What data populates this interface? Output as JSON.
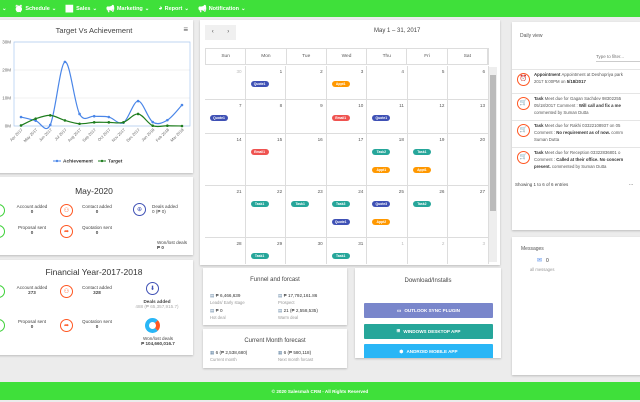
{
  "nav": {
    "items": [
      {
        "label": "Schedule",
        "icon": "clock-icon"
      },
      {
        "label": "Sales",
        "icon": "chart-line-icon"
      },
      {
        "label": "Marketing",
        "icon": "megaphone-icon"
      },
      {
        "label": "Report",
        "icon": "pie-icon"
      },
      {
        "label": "Notification",
        "icon": "megaphone-icon"
      }
    ]
  },
  "chart_data": {
    "type": "line",
    "title": "Target Vs Achievement",
    "categories": [
      "Apr 2017",
      "May 2017",
      "Jun 2017",
      "Jul 2017",
      "Aug 2017",
      "Sep 2017",
      "Oct 2017",
      "Nov 2017",
      "Dec 2017",
      "Jan 2018",
      "Feb 2018",
      "Mar 2018"
    ],
    "yticks": [
      "0M",
      "10M",
      "20M",
      "30M"
    ],
    "ylim": [
      0,
      30
    ],
    "grid": true,
    "legend": "bottom",
    "series": [
      {
        "name": "Achievement",
        "color": "#4a86e8",
        "values": [
          3.2,
          1.9,
          0.4,
          22.9,
          4.3,
          3.5,
          3.2,
          1.2,
          8.9,
          1.4,
          2.1,
          7.5
        ]
      },
      {
        "name": "Target",
        "color": "#1e7d1e",
        "values": [
          0.2,
          2.6,
          3.8,
          2.0,
          0.8,
          1.3,
          1.3,
          1.3,
          4.3,
          0.1,
          0.1,
          0
        ]
      }
    ]
  },
  "month": {
    "title": "May-2020",
    "account_label": "Account added",
    "account_value": "0",
    "contact_label": "Contact added",
    "contact_value": "0",
    "deals_label": "Deals added",
    "deals_value": "0 (₱ 0)",
    "proposal_label": "Proposal sent",
    "proposal_value": "0",
    "quotation_label": "Quotation sent",
    "quotation_value": "0",
    "wonlost_label": "Won/lost deals",
    "wonlost_value": "₱ 0"
  },
  "fy": {
    "title": "Financial Year-2017-2018",
    "account_label": "Account added",
    "account_value": "273",
    "contact_label": "Contact added",
    "contact_value": "328",
    "deals_label": "Deals added",
    "deals_value": "488 (₱ 65,357,915.7)",
    "proposal_label": "Proposal sent",
    "proposal_value": "0",
    "quotation_label": "Quotation sent",
    "quotation_value": "0",
    "wonlost_label": "Won/lost deals",
    "wonlost_value": "₱ 104,660,016.7"
  },
  "calendar": {
    "title": "May 1 – 31, 2017",
    "prev": "‹",
    "next": "›",
    "days": [
      "Sun",
      "Mon",
      "Tue",
      "Wed",
      "Thu",
      "Fri",
      "Sat"
    ],
    "weeks": [
      [
        {
          "n": "30",
          "o": true
        },
        {
          "n": "1",
          "ev": [
            [
              "Quote1",
              "#3f51b5"
            ]
          ]
        },
        {
          "n": "2"
        },
        {
          "n": "3",
          "ev": [
            [
              "Appt1",
              "#ff9800"
            ]
          ]
        },
        {
          "n": "4"
        },
        {
          "n": "5"
        },
        {
          "n": "6"
        }
      ],
      [
        {
          "n": "7",
          "ev": [
            [
              "Quote1",
              "#3f51b5"
            ]
          ]
        },
        {
          "n": "8"
        },
        {
          "n": "9"
        },
        {
          "n": "10",
          "ev": [
            [
              "Email1",
              "#ef5350"
            ]
          ]
        },
        {
          "n": "11",
          "ev": [
            [
              "Quote1",
              "#3f51b5"
            ]
          ]
        },
        {
          "n": "12"
        },
        {
          "n": "13"
        }
      ],
      [
        {
          "n": "14"
        },
        {
          "n": "15",
          "ev": [
            [
              "Email1",
              "#ef5350"
            ]
          ]
        },
        {
          "n": "16"
        },
        {
          "n": "17"
        },
        {
          "n": "18",
          "ev": [
            [
              "Task2",
              "#26a69a"
            ],
            [
              "Appt1",
              "#ff9800"
            ]
          ]
        },
        {
          "n": "19",
          "ev": [
            [
              "Task1",
              "#26a69a"
            ],
            [
              "Appt1",
              "#ff9800"
            ]
          ]
        },
        {
          "n": "20"
        }
      ],
      [
        {
          "n": "21"
        },
        {
          "n": "22",
          "ev": [
            [
              "Task1",
              "#26a69a"
            ]
          ]
        },
        {
          "n": "23",
          "ev": [
            [
              "Task1",
              "#26a69a"
            ]
          ]
        },
        {
          "n": "24",
          "ev": [
            [
              "Task3",
              "#26a69a"
            ],
            [
              "Quote1",
              "#3f51b5"
            ]
          ]
        },
        {
          "n": "25",
          "ev": [
            [
              "Quote3",
              "#3f51b5"
            ],
            [
              "Appt2",
              "#ff9800"
            ]
          ]
        },
        {
          "n": "26",
          "ev": [
            [
              "Task2",
              "#26a69a"
            ]
          ]
        },
        {
          "n": "27"
        }
      ],
      [
        {
          "n": "28"
        },
        {
          "n": "29",
          "ev": [
            [
              "Task1",
              "#26a69a"
            ]
          ]
        },
        {
          "n": "30"
        },
        {
          "n": "31",
          "ev": [
            [
              "Task1",
              "#26a69a"
            ]
          ]
        },
        {
          "n": "1",
          "o": true
        },
        {
          "n": "2",
          "o": true
        },
        {
          "n": "3",
          "o": true
        }
      ]
    ]
  },
  "funnel": {
    "title": "Funnel and forcast",
    "items": [
      {
        "value": "₱ 6,466,639",
        "label": "Leads/ Early stage"
      },
      {
        "value": "₱ 17,792,161.86",
        "label": "Prospect"
      },
      {
        "value": "₱ 0",
        "label": "Hot deal"
      },
      {
        "value": "21 (₱ 2,558,535)",
        "label": "Warm deal"
      }
    ]
  },
  "forecast": {
    "title": "Current Month forecast",
    "items": [
      {
        "value": "6 (₱ 2,538,680)",
        "label": "Current month"
      },
      {
        "value": "6 (₱ 580,118)",
        "label": "Next month forcast"
      }
    ]
  },
  "downloads": {
    "title": "Download/Installs",
    "buttons": [
      {
        "label": "OUTLOOK SYNC PLUGIN",
        "color": "#7986cb"
      },
      {
        "label": "WINDOWS DESKTOP APP",
        "color": "#26a69a"
      },
      {
        "label": "ANDROID MOBILE APP",
        "color": "#29b6f6"
      }
    ]
  },
  "daily": {
    "title": "Daily view",
    "filter_placeholder": "Type to filter...",
    "entries": [
      {
        "icon": "alarm-clock-icon",
        "lines": [
          [
            [
              "Appointment",
              true
            ],
            [
              " Appointment at Deshopriya park",
              false
            ]
          ],
          [
            [
              "2017 5:00PM on ",
              false
            ],
            [
              "5/18/2017",
              true
            ]
          ]
        ]
      },
      {
        "icon": "cart-icon",
        "lines": [
          [
            [
              "Task",
              true
            ],
            [
              " Meet due for Gagan Sachdev 98302255",
              false
            ]
          ],
          [
            [
              "05/18/2017 Comment : ",
              false
            ],
            [
              "Will call and fix a me",
              true
            ]
          ],
          [
            [
              "commented by Suman Dutta",
              false
            ]
          ]
        ]
      },
      {
        "icon": "cart-icon",
        "lines": [
          [
            [
              "Task",
              true
            ],
            [
              " Meet due for Rakhi 03322108937 on 05",
              false
            ]
          ],
          [
            [
              "Comment : ",
              false
            ],
            [
              "No requirement as of now.",
              true
            ],
            [
              " comm",
              false
            ]
          ],
          [
            [
              "Suman Dutta",
              false
            ]
          ]
        ]
      },
      {
        "icon": "cart-icon",
        "lines": [
          [
            [
              "Task",
              true
            ],
            [
              " Meet due for Reception 03322836801 o",
              false
            ]
          ],
          [
            [
              "Comment : ",
              false
            ],
            [
              "Called at their office. No concern",
              true
            ]
          ],
          [
            [
              "present.",
              true
            ],
            [
              " commented by Suman Dutta",
              false
            ]
          ]
        ]
      }
    ],
    "footer": "Showing 1 to 6 of 6 entries",
    "pager_prev": "...",
    "pager_current": ""
  },
  "messages": {
    "title": "Messages",
    "count": "0",
    "label": "all messages"
  },
  "footer": "© 2020 Salesmah CRM - All Rights Reserved"
}
